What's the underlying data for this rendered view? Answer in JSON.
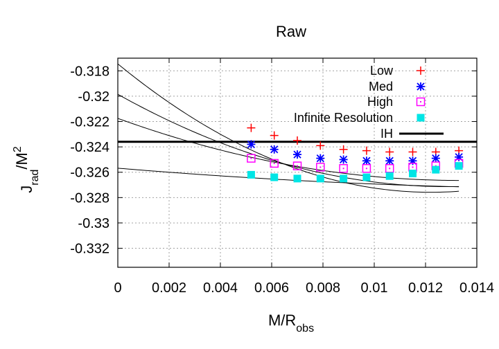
{
  "chart_data": {
    "type": "scatter",
    "title": "Raw",
    "xlabel": {
      "base": "M/R",
      "sub": "obs"
    },
    "ylabel": {
      "base": "J",
      "sub": "rad",
      "rest": "/M",
      "sup": "2"
    },
    "xlim": [
      0,
      0.014
    ],
    "ylim": [
      -0.3335,
      -0.317
    ],
    "grid": true,
    "legend_position": "top-right",
    "x_ticks": [
      {
        "value": 0,
        "label": "0"
      },
      {
        "value": 0.002,
        "label": "0.002"
      },
      {
        "value": 0.004,
        "label": "0.004"
      },
      {
        "value": 0.006,
        "label": "0.006"
      },
      {
        "value": 0.008,
        "label": "0.008"
      },
      {
        "value": 0.01,
        "label": "0.01"
      },
      {
        "value": 0.012,
        "label": "0.012"
      },
      {
        "value": 0.014,
        "label": "0.014"
      }
    ],
    "y_ticks": [
      {
        "value": -0.318,
        "label": "-0.318"
      },
      {
        "value": -0.32,
        "label": "-0.32"
      },
      {
        "value": -0.322,
        "label": "-0.322"
      },
      {
        "value": -0.324,
        "label": "-0.324"
      },
      {
        "value": -0.326,
        "label": "-0.326"
      },
      {
        "value": -0.328,
        "label": "-0.328"
      },
      {
        "value": -0.33,
        "label": "-0.33"
      },
      {
        "value": -0.332,
        "label": "-0.332"
      }
    ],
    "x": [
      0.0052,
      0.0061,
      0.007,
      0.0079,
      0.0088,
      0.0097,
      0.0106,
      0.0115,
      0.0124,
      0.0133
    ],
    "series": [
      {
        "name": "Low",
        "marker": "plus",
        "color": "#ff0000",
        "values": [
          -0.3225,
          -0.3231,
          -0.3235,
          -0.3239,
          -0.3242,
          -0.3243,
          -0.3244,
          -0.3244,
          -0.3244,
          -0.3243
        ]
      },
      {
        "name": "Med",
        "marker": "star",
        "color": "#0000ff",
        "values": [
          -0.3238,
          -0.3242,
          -0.3246,
          -0.3249,
          -0.325,
          -0.3251,
          -0.3251,
          -0.3251,
          -0.3249,
          -0.3248
        ]
      },
      {
        "name": "High",
        "marker": "open-square-dot",
        "color": "#ff00ff",
        "values": [
          -0.3249,
          -0.3253,
          -0.3255,
          -0.3256,
          -0.3257,
          -0.3257,
          -0.3257,
          -0.3256,
          -0.3255,
          -0.3253
        ]
      },
      {
        "name": "Infinite Resolution",
        "marker": "filled-square",
        "color": "#00e5e5",
        "values": [
          -0.3262,
          -0.3264,
          -0.3265,
          -0.3265,
          -0.3265,
          -0.3264,
          -0.3263,
          -0.3261,
          -0.3258,
          -0.3255
        ]
      }
    ],
    "reference_line": {
      "name": "IH",
      "y": -0.3236,
      "color": "#000000"
    },
    "fit_curves": [
      {
        "for": "Low",
        "color": "#000000",
        "coefficients": [
          -0.31745,
          -1.66,
          68.0
        ]
      },
      {
        "for": "Med",
        "color": "#000000",
        "coefficients": [
          -0.31985,
          -1.13,
          43.8
        ]
      },
      {
        "for": "High",
        "color": "#000000",
        "coefficients": [
          -0.32175,
          -0.734,
          27.5
        ]
      },
      {
        "for": "Infinite Resolution",
        "color": "#000000",
        "coefficients": [
          -0.32568,
          -0.169,
          4.4
        ]
      }
    ]
  }
}
